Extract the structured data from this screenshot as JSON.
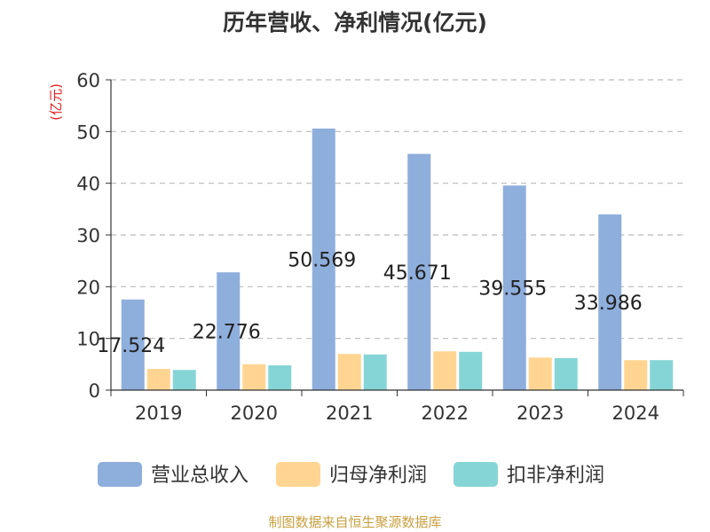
{
  "chart_data": {
    "type": "bar",
    "title": "历年营收、净利情况(亿元)",
    "ylabel": "(亿元)",
    "xlabel": "",
    "categories": [
      "2019",
      "2020",
      "2021",
      "2022",
      "2023",
      "2024"
    ],
    "ylim": [
      0,
      60
    ],
    "yticks": [
      0,
      10,
      20,
      30,
      40,
      50,
      60
    ],
    "grid": true,
    "legend_position": "bottom",
    "series": [
      {
        "name": "营业总收入",
        "color": "#8eaedc",
        "values": [
          17.524,
          22.776,
          50.569,
          45.671,
          39.555,
          33.986
        ],
        "data_labels": [
          "17.524",
          "22.776",
          "50.569",
          "45.671",
          "39.555",
          "33.986"
        ]
      },
      {
        "name": "归母净利润",
        "color": "#ffd591",
        "values": [
          4.1,
          5.0,
          7.0,
          7.5,
          6.3,
          5.8
        ]
      },
      {
        "name": "扣非净利润",
        "color": "#86d5d6",
        "values": [
          3.9,
          4.8,
          6.9,
          7.4,
          6.2,
          5.8
        ]
      }
    ]
  },
  "source_note": "制图数据来自恒生聚源数据库",
  "colors": {
    "title": "#333333",
    "axis": "#333333",
    "grid": "#bbbbbb",
    "ylabel": "#e02020",
    "source": "#c8a040"
  }
}
